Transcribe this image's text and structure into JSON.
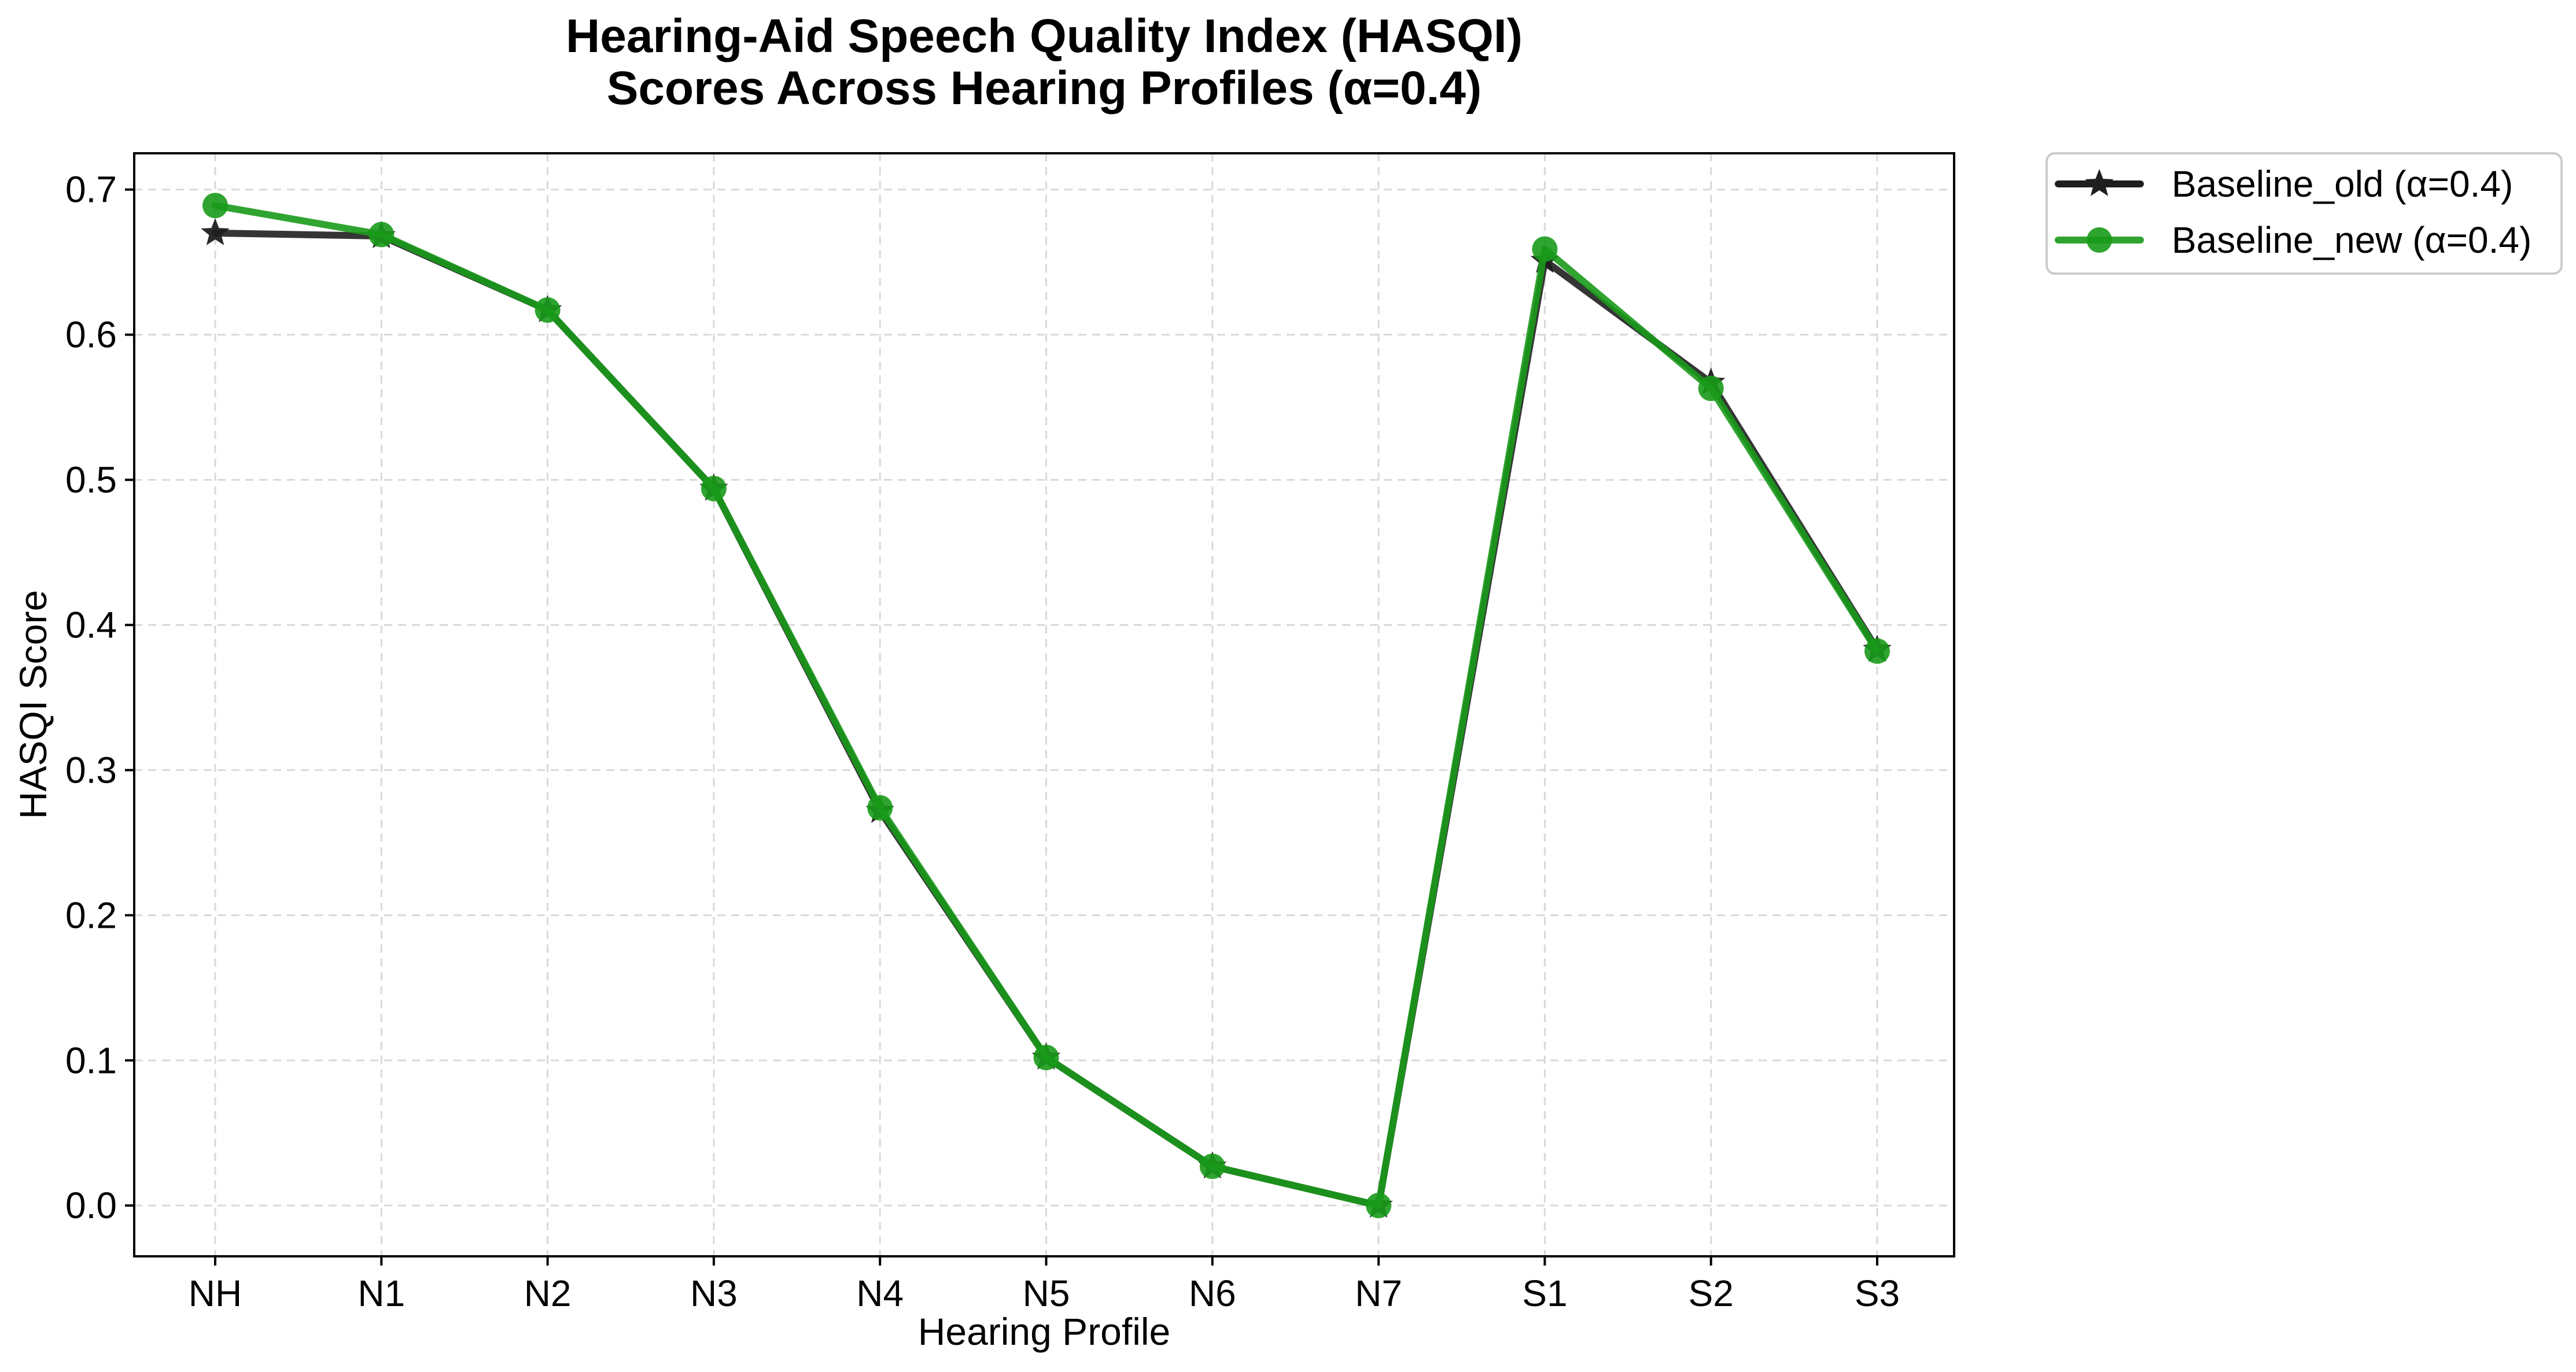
{
  "chart_data": {
    "type": "line",
    "title_lines": [
      "Hearing-Aid Speech Quality Index (HASQI)",
      "Scores Across Hearing Profiles (α=0.4)"
    ],
    "xlabel": "Hearing Profile",
    "ylabel": "HASQI Score",
    "categories": [
      "NH",
      "N1",
      "N2",
      "N3",
      "N4",
      "N5",
      "N6",
      "N7",
      "S1",
      "S2",
      "S3"
    ],
    "ylim": [
      -0.035,
      0.725
    ],
    "yticks": [
      "0.0",
      "0.1",
      "0.2",
      "0.3",
      "0.4",
      "0.5",
      "0.6",
      "0.7"
    ],
    "grid": true,
    "legend_position": "outside-top-right",
    "series": [
      {
        "name": "Baseline_old (α=0.4)",
        "color": "#1f1f1f",
        "marker": "star",
        "values": [
          0.67,
          0.668,
          0.617,
          0.494,
          0.272,
          0.102,
          0.027,
          0.0,
          0.651,
          0.567,
          0.383
        ]
      },
      {
        "name": "Baseline_new (α=0.4)",
        "color": "#1a9a1a",
        "marker": "circle",
        "values": [
          0.689,
          0.669,
          0.617,
          0.494,
          0.274,
          0.102,
          0.027,
          0.0,
          0.659,
          0.563,
          0.382
        ]
      }
    ]
  }
}
